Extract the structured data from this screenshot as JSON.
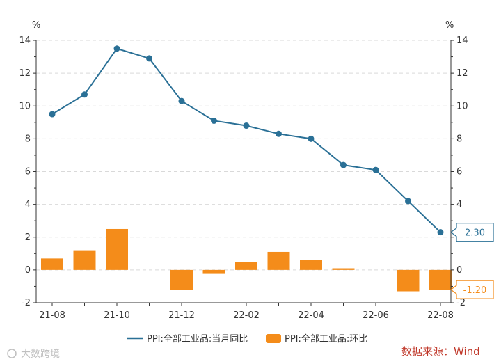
{
  "chart_data": {
    "type": "bar+line",
    "categories": [
      "21-08",
      "21-09",
      "21-10",
      "21-11",
      "21-12",
      "22-01",
      "22-02",
      "22-03",
      "22-04",
      "22-05",
      "22-06",
      "22-07",
      "22-08"
    ],
    "x_tick_labels": [
      "21-08",
      "21-10",
      "21-12",
      "22-02",
      "22-04",
      "22-06",
      "22-08"
    ],
    "series": [
      {
        "name": "PPI:全部工业品:当月同比",
        "kind": "line",
        "color": "#2a7096",
        "values": [
          9.5,
          10.7,
          13.5,
          12.9,
          10.3,
          9.1,
          8.8,
          8.3,
          8.0,
          6.4,
          6.1,
          4.2,
          2.3
        ]
      },
      {
        "name": "PPI:全部工业品:环比",
        "kind": "bar",
        "color": "#f48c1a",
        "values": [
          0.7,
          1.2,
          2.5,
          0.0,
          -1.2,
          -0.2,
          0.5,
          1.1,
          0.6,
          0.1,
          0.0,
          -1.3,
          -1.2
        ]
      }
    ],
    "y_left": {
      "unit": "%",
      "ylim": [
        -2,
        14
      ],
      "ticks": [
        -2,
        0,
        2,
        4,
        6,
        8,
        10,
        12,
        14
      ]
    },
    "y_right": {
      "unit": "%",
      "ylim": [
        -2,
        14
      ],
      "ticks": [
        -2,
        0,
        2,
        4,
        6,
        8,
        10,
        12,
        14
      ]
    },
    "grid": true,
    "legend_position": "bottom-center",
    "callouts": [
      {
        "series": "PPI:全部工业品:当月同比",
        "label": "2.30",
        "color": "#2a7096",
        "value": 2.3
      },
      {
        "series": "PPI:全部工业品:环比",
        "label": "-1.20",
        "color": "#f48c1a",
        "value": -1.2
      }
    ],
    "source_text": "数据来源：Wind",
    "watermark_text": "大数跨境"
  }
}
